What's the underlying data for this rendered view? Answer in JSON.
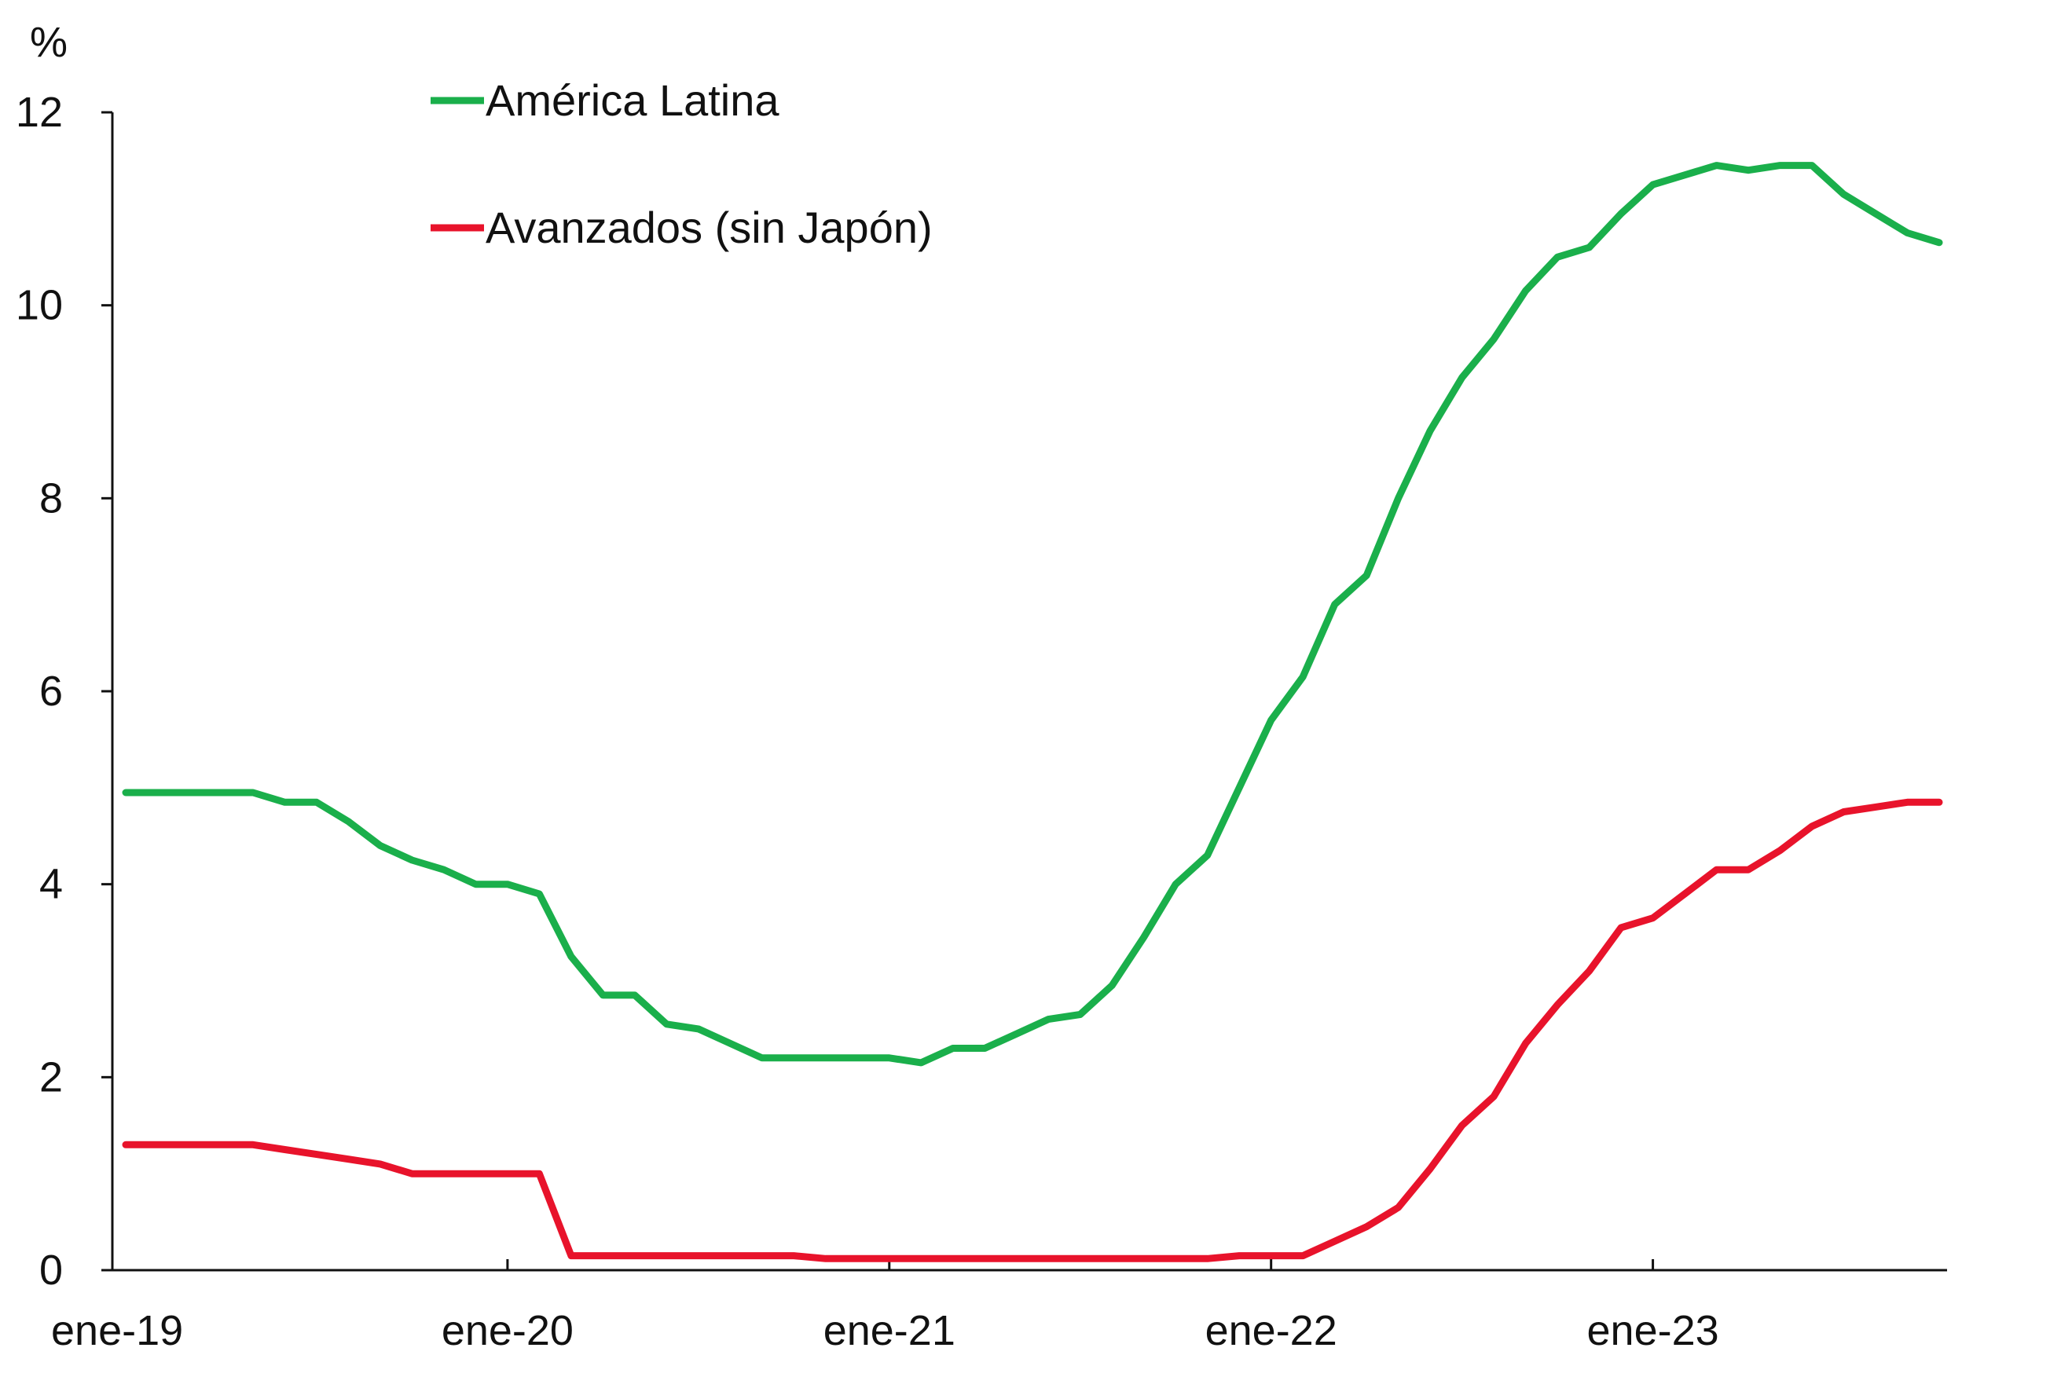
{
  "chart_data": {
    "type": "line",
    "y_unit_label": "%",
    "ylim": [
      0,
      12
    ],
    "y_ticks": [
      0,
      2,
      4,
      6,
      8,
      10,
      12
    ],
    "x_range_months": [
      "2019-01",
      "2023-10"
    ],
    "x_tick_labels": [
      {
        "month": "2019-01",
        "label": "ene-19"
      },
      {
        "month": "2020-01",
        "label": "ene-20"
      },
      {
        "month": "2021-01",
        "label": "ene-21"
      },
      {
        "month": "2022-01",
        "label": "ene-22"
      },
      {
        "month": "2023-01",
        "label": "ene-23"
      }
    ],
    "grid": false,
    "legend_placement": "top-left",
    "series": [
      {
        "name": "América Latina",
        "color": "#1aaf4b",
        "points": [
          [
            "2019-01",
            4.95
          ],
          [
            "2019-02",
            4.95
          ],
          [
            "2019-03",
            4.95
          ],
          [
            "2019-04",
            4.95
          ],
          [
            "2019-05",
            4.95
          ],
          [
            "2019-06",
            4.85
          ],
          [
            "2019-07",
            4.85
          ],
          [
            "2019-08",
            4.65
          ],
          [
            "2019-09",
            4.4
          ],
          [
            "2019-10",
            4.25
          ],
          [
            "2019-11",
            4.15
          ],
          [
            "2019-12",
            4.0
          ],
          [
            "2020-01",
            4.0
          ],
          [
            "2020-02",
            3.9
          ],
          [
            "2020-03",
            3.25
          ],
          [
            "2020-04",
            2.85
          ],
          [
            "2020-05",
            2.85
          ],
          [
            "2020-06",
            2.55
          ],
          [
            "2020-07",
            2.5
          ],
          [
            "2020-08",
            2.35
          ],
          [
            "2020-09",
            2.2
          ],
          [
            "2020-10",
            2.2
          ],
          [
            "2020-11",
            2.2
          ],
          [
            "2020-12",
            2.2
          ],
          [
            "2021-01",
            2.2
          ],
          [
            "2021-02",
            2.15
          ],
          [
            "2021-03",
            2.3
          ],
          [
            "2021-04",
            2.3
          ],
          [
            "2021-05",
            2.45
          ],
          [
            "2021-06",
            2.6
          ],
          [
            "2021-07",
            2.65
          ],
          [
            "2021-08",
            2.95
          ],
          [
            "2021-09",
            3.45
          ],
          [
            "2021-10",
            4.0
          ],
          [
            "2021-11",
            4.3
          ],
          [
            "2021-12",
            5.0
          ],
          [
            "2022-01",
            5.7
          ],
          [
            "2022-02",
            6.15
          ],
          [
            "2022-03",
            6.9
          ],
          [
            "2022-04",
            7.2
          ],
          [
            "2022-05",
            8.0
          ],
          [
            "2022-06",
            8.7
          ],
          [
            "2022-07",
            9.25
          ],
          [
            "2022-08",
            9.65
          ],
          [
            "2022-09",
            10.15
          ],
          [
            "2022-10",
            10.5
          ],
          [
            "2022-11",
            10.6
          ],
          [
            "2022-12",
            10.95
          ],
          [
            "2023-01",
            11.25
          ],
          [
            "2023-02",
            11.35
          ],
          [
            "2023-03",
            11.45
          ],
          [
            "2023-04",
            11.4
          ],
          [
            "2023-05",
            11.45
          ],
          [
            "2023-06",
            11.45
          ],
          [
            "2023-07",
            11.15
          ],
          [
            "2023-08",
            10.95
          ],
          [
            "2023-09",
            10.75
          ],
          [
            "2023-10",
            10.65
          ]
        ]
      },
      {
        "name": "Avanzados (sin Japón)",
        "color": "#e8132b",
        "points": [
          [
            "2019-01",
            1.3
          ],
          [
            "2019-02",
            1.3
          ],
          [
            "2019-03",
            1.3
          ],
          [
            "2019-04",
            1.3
          ],
          [
            "2019-05",
            1.3
          ],
          [
            "2019-06",
            1.25
          ],
          [
            "2019-07",
            1.2
          ],
          [
            "2019-08",
            1.15
          ],
          [
            "2019-09",
            1.1
          ],
          [
            "2019-10",
            1.0
          ],
          [
            "2019-11",
            1.0
          ],
          [
            "2019-12",
            1.0
          ],
          [
            "2020-01",
            1.0
          ],
          [
            "2020-02",
            1.0
          ],
          [
            "2020-03",
            0.15
          ],
          [
            "2020-04",
            0.15
          ],
          [
            "2020-05",
            0.15
          ],
          [
            "2020-06",
            0.15
          ],
          [
            "2020-07",
            0.15
          ],
          [
            "2020-08",
            0.15
          ],
          [
            "2020-09",
            0.15
          ],
          [
            "2020-10",
            0.15
          ],
          [
            "2020-11",
            0.12
          ],
          [
            "2020-12",
            0.12
          ],
          [
            "2021-01",
            0.12
          ],
          [
            "2021-02",
            0.12
          ],
          [
            "2021-03",
            0.12
          ],
          [
            "2021-04",
            0.12
          ],
          [
            "2021-05",
            0.12
          ],
          [
            "2021-06",
            0.12
          ],
          [
            "2021-07",
            0.12
          ],
          [
            "2021-08",
            0.12
          ],
          [
            "2021-09",
            0.12
          ],
          [
            "2021-10",
            0.12
          ],
          [
            "2021-11",
            0.12
          ],
          [
            "2021-12",
            0.15
          ],
          [
            "2022-01",
            0.15
          ],
          [
            "2022-02",
            0.15
          ],
          [
            "2022-03",
            0.3
          ],
          [
            "2022-04",
            0.45
          ],
          [
            "2022-05",
            0.65
          ],
          [
            "2022-06",
            1.05
          ],
          [
            "2022-07",
            1.5
          ],
          [
            "2022-08",
            1.8
          ],
          [
            "2022-09",
            2.35
          ],
          [
            "2022-10",
            2.75
          ],
          [
            "2022-11",
            3.1
          ],
          [
            "2022-12",
            3.55
          ],
          [
            "2023-01",
            3.65
          ],
          [
            "2023-02",
            3.9
          ],
          [
            "2023-03",
            4.15
          ],
          [
            "2023-04",
            4.15
          ],
          [
            "2023-05",
            4.35
          ],
          [
            "2023-06",
            4.6
          ],
          [
            "2023-07",
            4.75
          ],
          [
            "2023-08",
            4.8
          ],
          [
            "2023-09",
            4.85
          ],
          [
            "2023-10",
            4.85
          ]
        ]
      }
    ]
  }
}
